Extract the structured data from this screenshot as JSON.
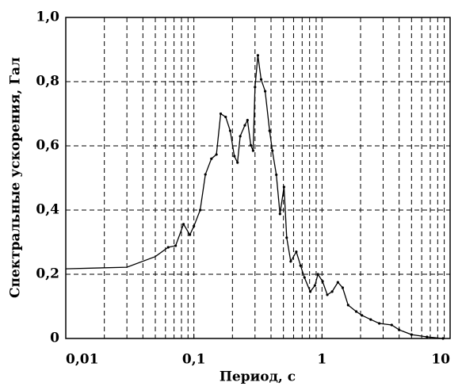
{
  "chart_data": {
    "type": "line",
    "xlabel": "Период, с",
    "ylabel": "Спектральные ускорения, Гал",
    "x_scale": "log",
    "grid": true,
    "xlim": [
      0.01,
      10
    ],
    "xticks": [
      {
        "value": 0.01,
        "label": "0,01"
      },
      {
        "value": 0.1,
        "label": "0,1"
      },
      1,
      10
    ],
    "x_minor_ticks": [
      0.02,
      0.03,
      0.04,
      0.05,
      0.06,
      0.07,
      0.08,
      0.09,
      0.2,
      0.3,
      0.4,
      0.5,
      0.6,
      0.7,
      0.8,
      0.9,
      2,
      3,
      4,
      5,
      6,
      7,
      8,
      9
    ],
    "ylim": [
      0,
      1.0
    ],
    "yticks": [
      0,
      {
        "value": 0.2,
        "label": "0,2"
      },
      {
        "value": 0.4,
        "label": "0,4"
      },
      {
        "value": 0.6,
        "label": "0,6"
      },
      {
        "value": 0.8,
        "label": "0,8"
      },
      {
        "value": 1.0,
        "label": "1,0"
      }
    ],
    "series": [
      {
        "color": "#000000",
        "x": [
          0.01,
          0.03,
          0.05,
          0.063,
          0.072,
          0.083,
          0.093,
          0.1,
          0.112,
          0.123,
          0.137,
          0.15,
          0.162,
          0.177,
          0.192,
          0.207,
          0.219,
          0.23,
          0.25,
          0.262,
          0.278,
          0.29,
          0.3,
          0.316,
          0.335,
          0.36,
          0.39,
          0.41,
          0.44,
          0.47,
          0.505,
          0.53,
          0.57,
          0.63,
          0.68,
          0.73,
          0.81,
          0.88,
          0.93,
          1.01,
          1.1,
          1.2,
          1.33,
          1.45,
          1.6,
          1.85,
          2.05,
          2.4,
          2.8,
          3.5,
          4.0,
          5.0,
          6.6,
          8.8
        ],
        "values": [
          0.217,
          0.222,
          0.255,
          0.284,
          0.289,
          0.356,
          0.323,
          0.35,
          0.4,
          0.511,
          0.56,
          0.573,
          0.7,
          0.69,
          0.647,
          0.568,
          0.548,
          0.63,
          0.664,
          0.68,
          0.602,
          0.585,
          0.783,
          0.882,
          0.807,
          0.77,
          0.647,
          0.585,
          0.51,
          0.388,
          0.472,
          0.314,
          0.24,
          0.27,
          0.227,
          0.19,
          0.146,
          0.165,
          0.2,
          0.178,
          0.136,
          0.146,
          0.175,
          0.158,
          0.104,
          0.084,
          0.072,
          0.059,
          0.047,
          0.042,
          0.027,
          0.012,
          0.005,
          0
        ]
      }
    ]
  }
}
